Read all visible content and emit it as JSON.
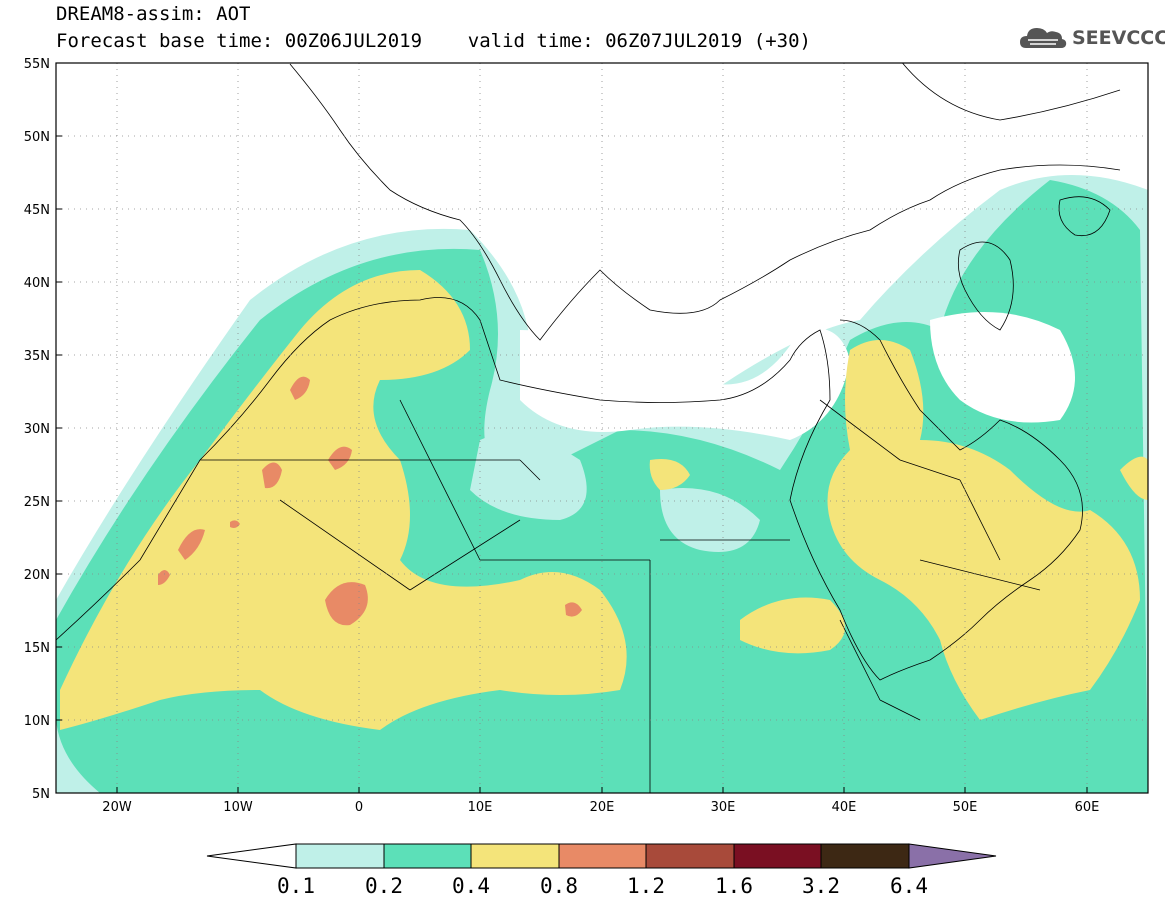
{
  "title": {
    "line1": "DREAM8-assim: AOT",
    "line2": "Forecast base time: 00Z06JUL2019    valid time: 06Z07JUL2019 (+30)"
  },
  "logo": {
    "text": "SEEVCCC",
    "icon": "cloud-icon"
  },
  "map": {
    "lon_range": [
      -25,
      65
    ],
    "lat_range": [
      5,
      55
    ],
    "lat_ticks": [
      "55N",
      "50N",
      "45N",
      "40N",
      "35N",
      "30N",
      "25N",
      "20N",
      "15N",
      "10N",
      "5N"
    ],
    "lon_ticks": [
      "20W",
      "10W",
      "0",
      "10E",
      "20E",
      "30E",
      "40E",
      "50E",
      "60E"
    ],
    "gridlines": "dotted"
  },
  "colorbar": {
    "labels": [
      "0.1",
      "0.2",
      "0.4",
      "0.8",
      "1.2",
      "1.6",
      "3.2",
      "6.4"
    ],
    "colors": [
      "#bff0e8",
      "#5ce0b8",
      "#f4e47a",
      "#e88a66",
      "#a84a3a",
      "#7a0f22",
      "#3d2814",
      "#8a70a8"
    ],
    "under_color": "#ffffff",
    "over_color": "#8a70a8"
  }
}
